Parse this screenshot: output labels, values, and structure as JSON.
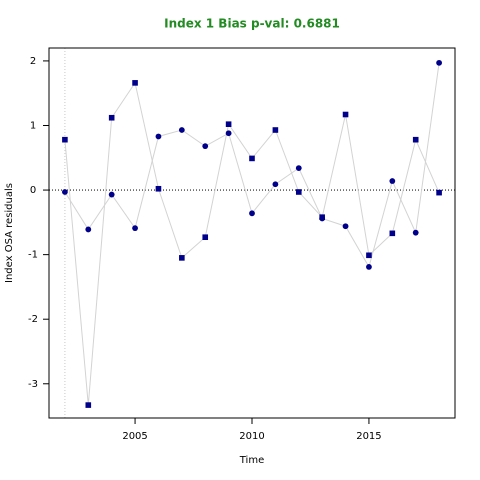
{
  "chart_data": {
    "type": "scatter",
    "title": "Index 1 Bias p-val: 0.6881",
    "x_label": "Time",
    "y_label": "Index OSA residuals",
    "xlim": [
      2001.32,
      2018.68
    ],
    "ylim": [
      -3.53,
      2.2
    ],
    "xticks": [
      2005,
      2010,
      2015
    ],
    "yticks": [
      -3,
      -2,
      -1,
      0,
      1,
      2
    ],
    "hline": 0,
    "vline": 2002,
    "line_color": "#d3d3d3",
    "series": [
      {
        "marker": "square",
        "color": "#00008b",
        "x": [
          2002,
          2003,
          2004,
          2005,
          2006,
          2007,
          2008,
          2009,
          2010,
          2011,
          2012,
          2013,
          2014,
          2015,
          2016,
          2017,
          2018
        ],
        "values": [
          0.78,
          -3.33,
          1.12,
          1.66,
          0.02,
          -1.05,
          -0.73,
          1.02,
          0.49,
          0.93,
          -0.03,
          -0.42,
          1.17,
          -1.01,
          -0.67,
          0.78,
          -0.04
        ]
      },
      {
        "marker": "circle",
        "color": "#00008b",
        "x": [
          2002,
          2003,
          2004,
          2005,
          2006,
          2007,
          2008,
          2009,
          2010,
          2011,
          2012,
          2013,
          2014,
          2015,
          2016,
          2017,
          2018
        ],
        "values": [
          -0.03,
          -0.61,
          -0.07,
          -0.59,
          0.83,
          0.93,
          0.68,
          0.88,
          -0.36,
          0.09,
          0.34,
          -0.44,
          -0.56,
          -1.19,
          0.14,
          -0.66,
          1.97
        ]
      }
    ]
  }
}
